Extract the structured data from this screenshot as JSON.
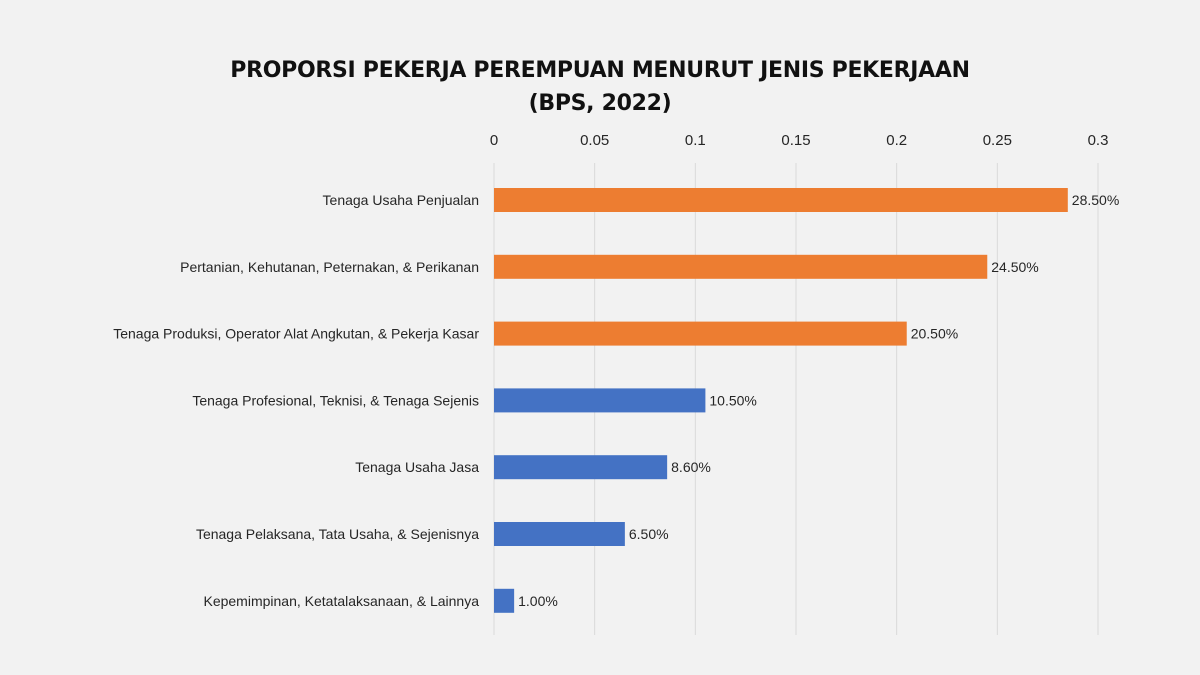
{
  "chart_data": {
    "type": "bar",
    "orientation": "horizontal",
    "title": "PROPORSI PEKERJA PEREMPUAN MENURUT JENIS PEKERJAAN",
    "subtitle": "(BPS, 2022)",
    "xlabel": "",
    "ylabel": "",
    "xlim": [
      0,
      0.3
    ],
    "x_ticks": [
      0,
      0.05,
      0.1,
      0.15,
      0.2,
      0.25,
      0.3
    ],
    "x_tick_labels": [
      "0",
      "0.05",
      "0.1",
      "0.15",
      "0.2",
      "0.25",
      "0.3"
    ],
    "x_axis_position": "top",
    "grid": true,
    "legend": "none",
    "categories": [
      "Tenaga Usaha Penjualan",
      "Pertanian, Kehutanan, Peternakan, & Perikanan",
      "Tenaga Produksi, Operator Alat Angkutan, & Pekerja Kasar",
      "Tenaga Profesional, Teknisi, & Tenaga Sejenis",
      "Tenaga Usaha Jasa",
      "Tenaga Pelaksana, Tata Usaha, & Sejenisnya",
      "Kepemimpinan, Ketatalaksanaan, & Lainnya"
    ],
    "values": [
      0.285,
      0.245,
      0.205,
      0.105,
      0.086,
      0.065,
      0.01
    ],
    "data_labels": [
      "28.50%",
      "24.50%",
      "20.50%",
      "10.50%",
      "8.60%",
      "6.50%",
      "1.00%"
    ],
    "bar_colors": [
      "#ed7d31",
      "#ed7d31",
      "#ed7d31",
      "#4472c4",
      "#4472c4",
      "#4472c4",
      "#4472c4"
    ]
  }
}
